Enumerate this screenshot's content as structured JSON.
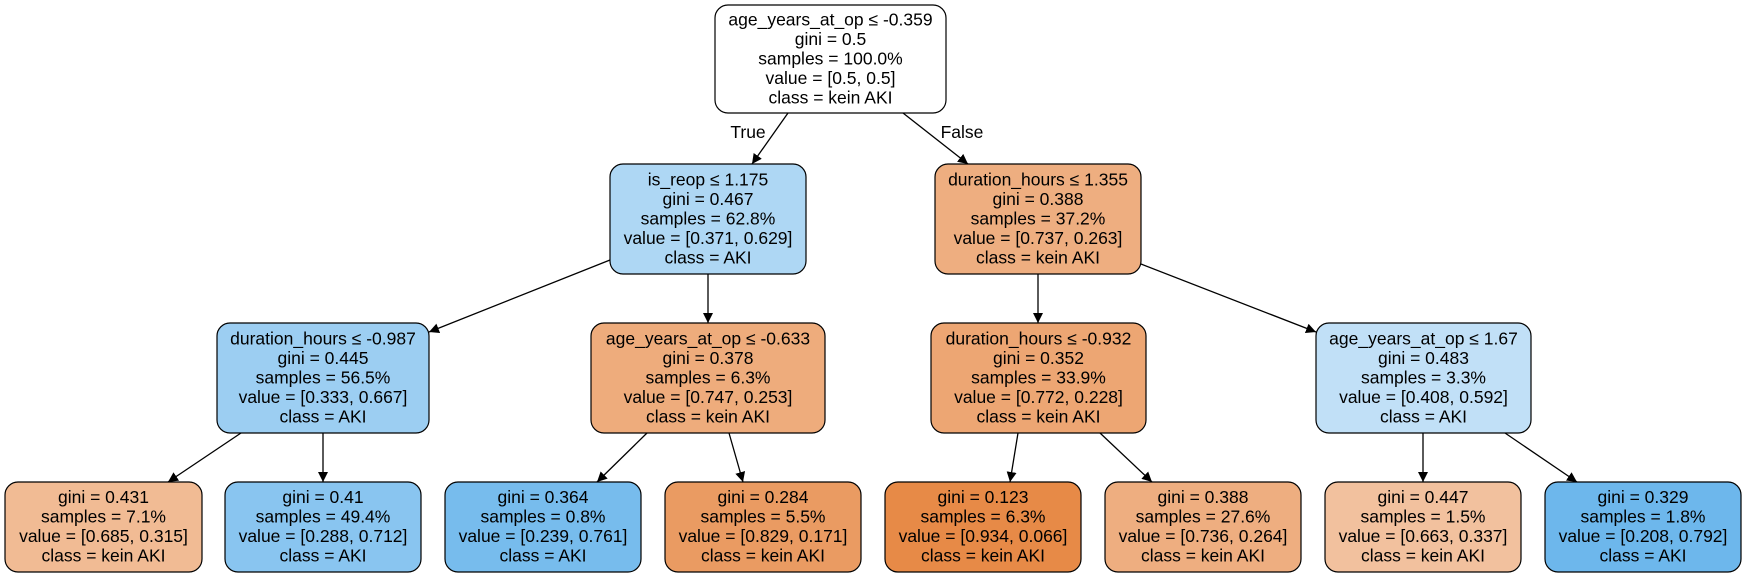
{
  "colors": {
    "kein_aki": "#e58139",
    "aki": "#399de5",
    "neutral": "#ffffff",
    "border": "#000000"
  },
  "edge_labels": {
    "true_label": "True",
    "false_label": "False"
  },
  "nodes": [
    {
      "id": "root",
      "lines": [
        "age_years_at_op ≤ -0.359",
        "gini = 0.5",
        "samples = 100.0%",
        "value = [0.5, 0.5]",
        "class = kein AKI"
      ],
      "fill": "#ffffff"
    },
    {
      "id": "n1",
      "lines": [
        "is_reop ≤ 1.175",
        "gini = 0.467",
        "samples = 62.8%",
        "value = [0.371, 0.629]",
        "class = AKI"
      ],
      "fill": "#aed7f4"
    },
    {
      "id": "n2",
      "lines": [
        "duration_hours ≤ 1.355",
        "gini = 0.388",
        "samples = 37.2%",
        "value = [0.737, 0.263]",
        "class = kein AKI"
      ],
      "fill": "#eeae80"
    },
    {
      "id": "n3",
      "lines": [
        "duration_hours ≤ -0.987",
        "gini = 0.445",
        "samples = 56.5%",
        "value = [0.333, 0.667]",
        "class = AKI"
      ],
      "fill": "#9ccef2"
    },
    {
      "id": "n4",
      "lines": [
        "age_years_at_op ≤ -0.633",
        "gini = 0.378",
        "samples = 6.3%",
        "value = [0.747, 0.253]",
        "class = kein AKI"
      ],
      "fill": "#eeac7c"
    },
    {
      "id": "n5",
      "lines": [
        "duration_hours ≤ -0.932",
        "gini = 0.352",
        "samples = 33.9%",
        "value = [0.772, 0.228]",
        "class = kein AKI"
      ],
      "fill": "#eda673"
    },
    {
      "id": "n6",
      "lines": [
        "age_years_at_op ≤ 1.67",
        "gini = 0.483",
        "samples = 3.3%",
        "value = [0.408, 0.592]",
        "class = AKI"
      ],
      "fill": "#c1e0f7"
    },
    {
      "id": "l1",
      "lines": [
        "gini = 0.431",
        "samples = 7.1%",
        "value = [0.685, 0.315]",
        "class = kein AKI"
      ],
      "fill": "#f1bb94"
    },
    {
      "id": "l2",
      "lines": [
        "gini = 0.41",
        "samples = 49.4%",
        "value = [0.288, 0.712]",
        "class = AKI"
      ],
      "fill": "#89c5f0"
    },
    {
      "id": "l3",
      "lines": [
        "gini = 0.364",
        "samples = 0.8%",
        "value = [0.239, 0.761]",
        "class = AKI"
      ],
      "fill": "#77bced"
    },
    {
      "id": "l4",
      "lines": [
        "gini = 0.284",
        "samples = 5.5%",
        "value = [0.829, 0.171]",
        "class = kein AKI"
      ],
      "fill": "#ea9b62"
    },
    {
      "id": "l5",
      "lines": [
        "gini = 0.123",
        "samples = 6.3%",
        "value = [0.934, 0.066]",
        "class = kein AKI"
      ],
      "fill": "#e78a47"
    },
    {
      "id": "l6",
      "lines": [
        "gini = 0.388",
        "samples = 27.6%",
        "value = [0.736, 0.264]",
        "class = kein AKI"
      ],
      "fill": "#eeae80"
    },
    {
      "id": "l7",
      "lines": [
        "gini = 0.447",
        "samples = 1.5%",
        "value = [0.663, 0.337]",
        "class = kein AKI"
      ],
      "fill": "#f2c19e"
    },
    {
      "id": "l8",
      "lines": [
        "gini = 0.329",
        "samples = 1.8%",
        "value = [0.208, 0.792]",
        "class = AKI"
      ],
      "fill": "#6db7ec"
    }
  ]
}
